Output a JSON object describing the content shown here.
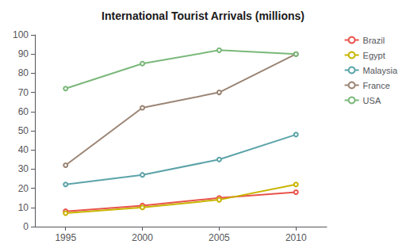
{
  "chart_data": {
    "type": "line",
    "title": "International Tourist Arrivals (millions)",
    "x": [
      1995,
      2000,
      2005,
      2010
    ],
    "series": [
      {
        "name": "Brazil",
        "color": "#e8534a",
        "values": [
          8,
          11,
          15,
          18
        ]
      },
      {
        "name": "Egypt",
        "color": "#c8b400",
        "values": [
          7,
          10,
          14,
          22
        ]
      },
      {
        "name": "Malaysia",
        "color": "#5ba3a8",
        "values": [
          22,
          27,
          35,
          48
        ]
      },
      {
        "name": "France",
        "color": "#9b8575",
        "values": [
          32,
          62,
          70,
          90
        ]
      },
      {
        "name": "USA",
        "color": "#7ab87a",
        "values": [
          72,
          85,
          92,
          90
        ]
      }
    ],
    "xlim": [
      1993,
      2012
    ],
    "xticks": [
      1995,
      2000,
      2005,
      2010
    ],
    "ylim": [
      0,
      100
    ],
    "yticks": [
      0,
      10,
      20,
      30,
      40,
      50,
      60,
      70,
      80,
      90,
      100
    ],
    "grid": false,
    "legend": "upper right"
  }
}
